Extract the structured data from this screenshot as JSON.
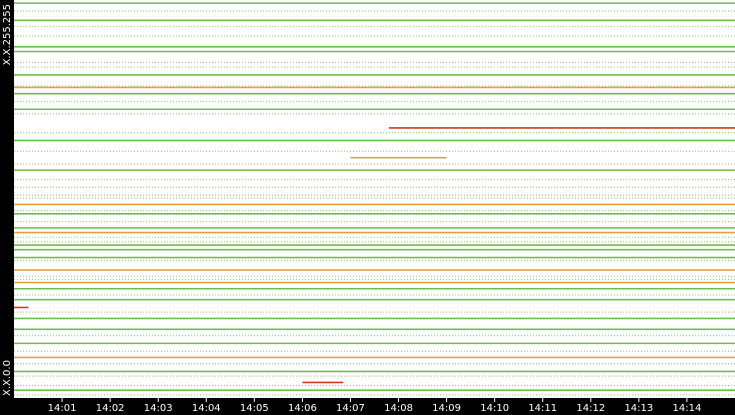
{
  "chart_data": {
    "type": "segments",
    "xlim": [
      0,
      15
    ],
    "xticks": [
      {
        "value": 1,
        "label": "14:01"
      },
      {
        "value": 2,
        "label": "14:02"
      },
      {
        "value": 3,
        "label": "14:03"
      },
      {
        "value": 4,
        "label": "14:04"
      },
      {
        "value": 5,
        "label": "14:05"
      },
      {
        "value": 6,
        "label": "14:06"
      },
      {
        "value": 7,
        "label": "14:07"
      },
      {
        "value": 8,
        "label": "14:08"
      },
      {
        "value": 9,
        "label": "14:09"
      },
      {
        "value": 10,
        "label": "14:10"
      },
      {
        "value": 11,
        "label": "14:11"
      },
      {
        "value": 12,
        "label": "14:12"
      },
      {
        "value": 13,
        "label": "14:13"
      },
      {
        "value": 14,
        "label": "14:14"
      }
    ],
    "ylim": [
      0,
      255
    ],
    "yticks": [
      {
        "value": 255,
        "label": "X.X.255.255"
      },
      {
        "value": 0,
        "label": "X.X.0.0"
      }
    ],
    "series": [
      {
        "color": "#8fd06a",
        "dashed": true,
        "segments": [
          [
            248,
            0,
            15
          ],
          [
            238,
            0,
            15
          ],
          [
            232,
            0,
            15
          ],
          [
            215,
            0,
            15
          ],
          [
            212,
            0,
            15
          ],
          [
            200,
            0,
            15
          ],
          [
            190,
            0,
            15
          ],
          [
            182,
            0,
            15
          ],
          [
            170,
            0,
            15
          ],
          [
            158,
            0,
            15
          ],
          [
            150,
            0,
            15
          ],
          [
            140,
            0,
            15
          ],
          [
            135,
            0,
            15
          ],
          [
            130,
            0,
            15
          ],
          [
            128,
            0,
            15
          ],
          [
            120,
            0,
            15
          ],
          [
            113,
            0,
            15
          ],
          [
            103,
            0,
            15
          ],
          [
            100,
            0,
            15
          ],
          [
            88,
            0,
            15
          ],
          [
            78,
            0,
            15
          ],
          [
            76,
            0,
            15
          ],
          [
            66,
            0,
            15
          ],
          [
            55,
            0,
            15
          ],
          [
            40,
            0,
            15
          ],
          [
            30,
            0,
            15
          ],
          [
            22,
            0,
            15
          ],
          [
            14,
            0,
            15
          ],
          [
            8,
            0,
            15
          ],
          [
            2,
            0,
            15
          ]
        ]
      },
      {
        "color": "#6cbf48",
        "dashed": false,
        "segments": [
          [
            253,
            0,
            15
          ],
          [
            242,
            0,
            15
          ],
          [
            225,
            0,
            15
          ],
          [
            222,
            0,
            15
          ],
          [
            207,
            0,
            15
          ],
          [
            195,
            0,
            15
          ],
          [
            185,
            0,
            15
          ],
          [
            165,
            0,
            15
          ],
          [
            146,
            0,
            15
          ],
          [
            118,
            0,
            15
          ],
          [
            109,
            0,
            15
          ],
          [
            98,
            0,
            15
          ],
          [
            95,
            0,
            15
          ],
          [
            90,
            0,
            15
          ],
          [
            70,
            0,
            15
          ],
          [
            63,
            0,
            15
          ],
          [
            51,
            0,
            15
          ],
          [
            44,
            0,
            15
          ],
          [
            35,
            0,
            15
          ],
          [
            17,
            0,
            15
          ],
          [
            5,
            0,
            15
          ]
        ]
      },
      {
        "color": "#e0a040",
        "dashed": false,
        "segments": [
          [
            199,
            0,
            15
          ],
          [
            154,
            7,
            9
          ],
          [
            124,
            0,
            15
          ],
          [
            106,
            0,
            15
          ],
          [
            82,
            0,
            15
          ],
          [
            74,
            0,
            15
          ],
          [
            26,
            0,
            15
          ]
        ]
      },
      {
        "color": "#cc3a1c",
        "dashed": false,
        "segments": [
          [
            173,
            7.8,
            15
          ],
          [
            10,
            6,
            6.85
          ],
          [
            58,
            0,
            0.3
          ]
        ]
      }
    ]
  }
}
